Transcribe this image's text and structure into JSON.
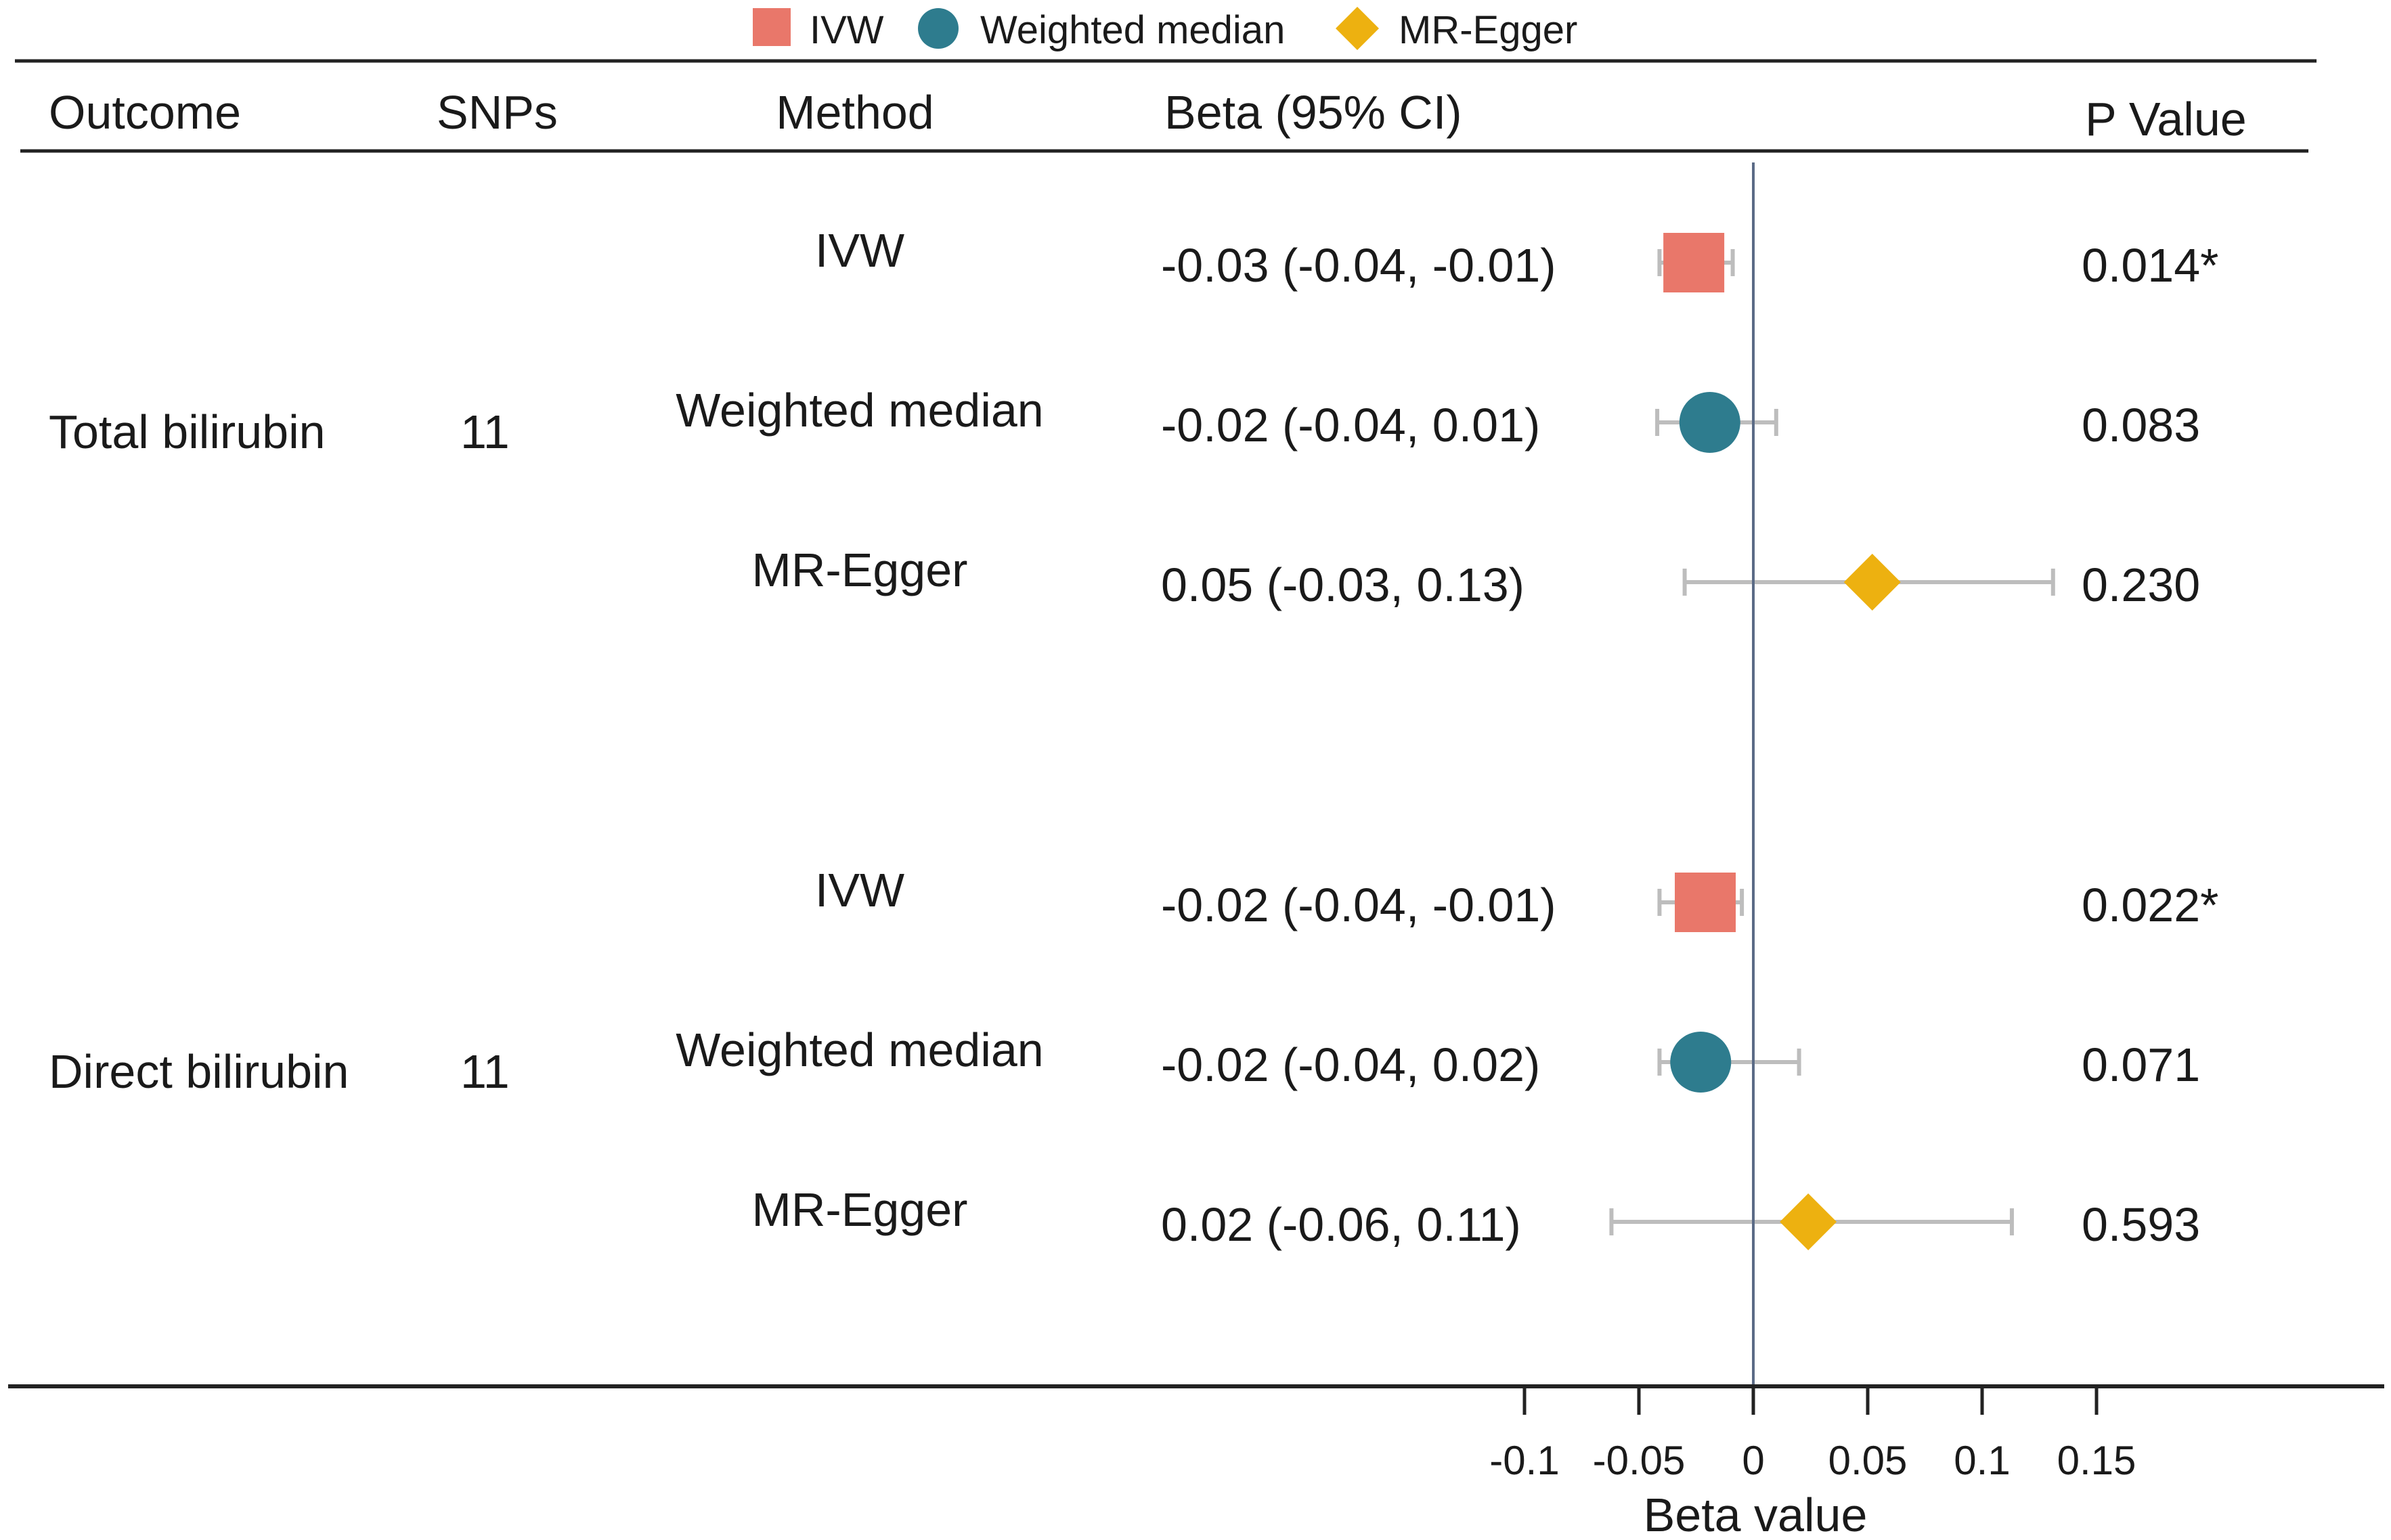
{
  "legend": [
    {
      "label": "IVW",
      "shape": "square",
      "color": "#E9776A"
    },
    {
      "label": "Weighted median",
      "shape": "circle",
      "color": "#2E7C8E"
    },
    {
      "label": "MR-Egger",
      "shape": "diamond",
      "color": "#EDB110"
    }
  ],
  "headers": {
    "outcome": "Outcome",
    "snps": "SNPs",
    "method": "Method",
    "beta": "Beta (95% CI)",
    "pvalue": "P Value"
  },
  "chart_data": {
    "type": "forest",
    "xlabel": "Beta value",
    "xlim": [
      -0.1,
      0.15
    ],
    "ticks": [
      -0.1,
      -0.05,
      0,
      0.05,
      0.1,
      0.15
    ],
    "tick_labels": [
      "-0.1",
      "-0.05",
      "0",
      "0.05",
      "0.1",
      "0.15"
    ],
    "reference_line": 0,
    "groups": [
      {
        "outcome": "Total bilirubin",
        "snps": "11",
        "rows": [
          {
            "method": "IVW",
            "beta": -0.026,
            "lo": -0.041,
            "hi": -0.009,
            "beta_text": "-0.03 (-0.04, -0.01)",
            "p": "0.014*"
          },
          {
            "method": "Weighted median",
            "beta": -0.019,
            "lo": -0.042,
            "hi": 0.01,
            "beta_text": "-0.02 (-0.04, 0.01)",
            "p": "0.083"
          },
          {
            "method": "MR-Egger",
            "beta": 0.052,
            "lo": -0.03,
            "hi": 0.131,
            "beta_text": "0.05 (-0.03, 0.13)",
            "p": "0.230"
          }
        ]
      },
      {
        "outcome": "Direct bilirubin",
        "snps": "11",
        "rows": [
          {
            "method": "IVW",
            "beta": -0.021,
            "lo": -0.041,
            "hi": -0.005,
            "beta_text": "-0.02 (-0.04, -0.01)",
            "p": "0.022*"
          },
          {
            "method": "Weighted median",
            "beta": -0.023,
            "lo": -0.041,
            "hi": 0.02,
            "beta_text": "-0.02 (-0.04, 0.02)",
            "p": "0.071"
          },
          {
            "method": "MR-Egger",
            "beta": 0.024,
            "lo": -0.062,
            "hi": 0.113,
            "beta_text": "0.02 (-0.06, 0.11)",
            "p": "0.593"
          }
        ]
      }
    ]
  }
}
